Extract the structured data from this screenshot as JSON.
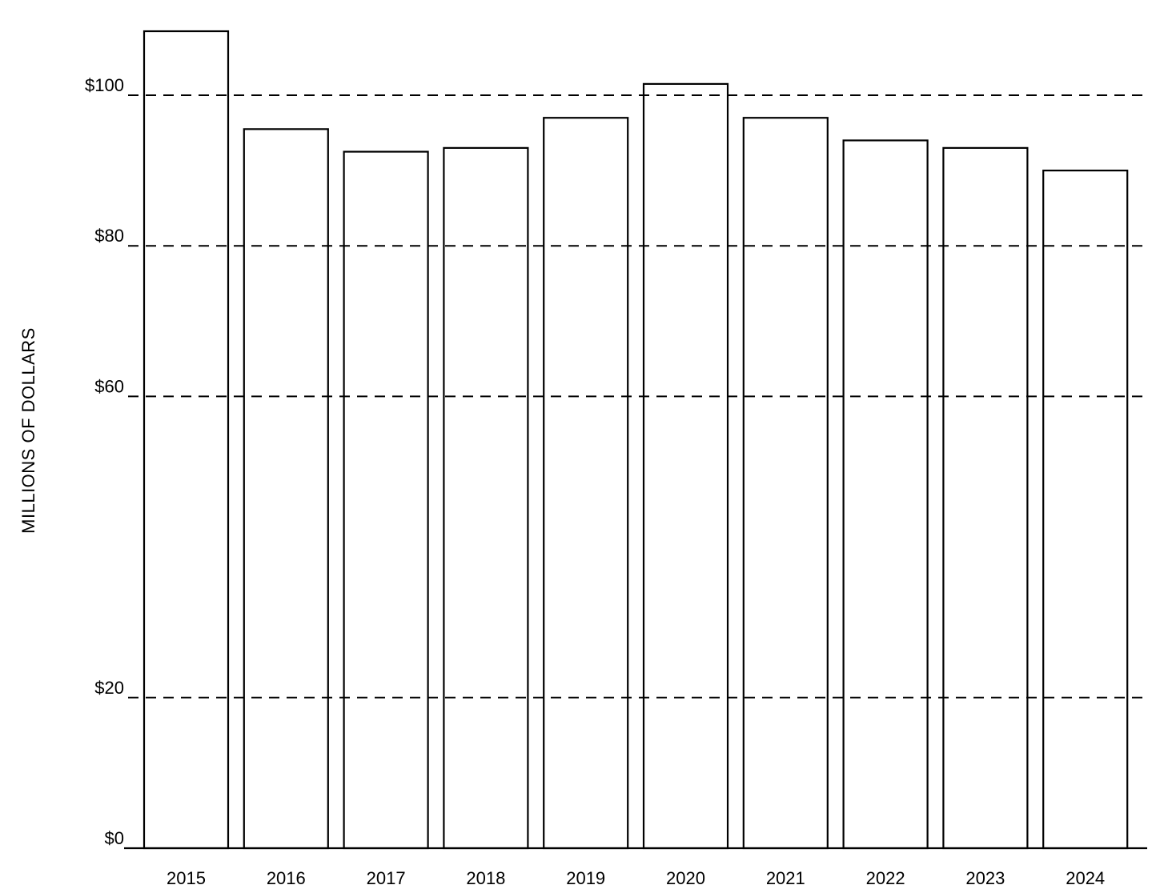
{
  "chart_data": {
    "type": "bar",
    "title": "",
    "xlabel": "",
    "ylabel": "MILLIONS OF DOLLARS",
    "categories": [
      "2015",
      "2016",
      "2017",
      "2018",
      "2019",
      "2020",
      "2021",
      "2022",
      "2023",
      "2024"
    ],
    "values": [
      108.5,
      95.5,
      92.5,
      93,
      97,
      101.5,
      97,
      94,
      93,
      90
    ],
    "ylim": [
      0,
      110
    ],
    "yticks": [
      0,
      20,
      60,
      80,
      100
    ],
    "ytick_labels": [
      "$0",
      "$20",
      "$60",
      "$80",
      "$100"
    ],
    "grid": true,
    "bar_fill": "landscape photograph (sky, brown hills, green and golden fields)",
    "colors": {
      "sky_top": "#b7d3ec",
      "sky_bottom": "#cfe0ee",
      "hills": "#b39867",
      "field_green": "#3f7a26",
      "field_gold": "#b7b249",
      "grass": "#8da43b"
    }
  }
}
